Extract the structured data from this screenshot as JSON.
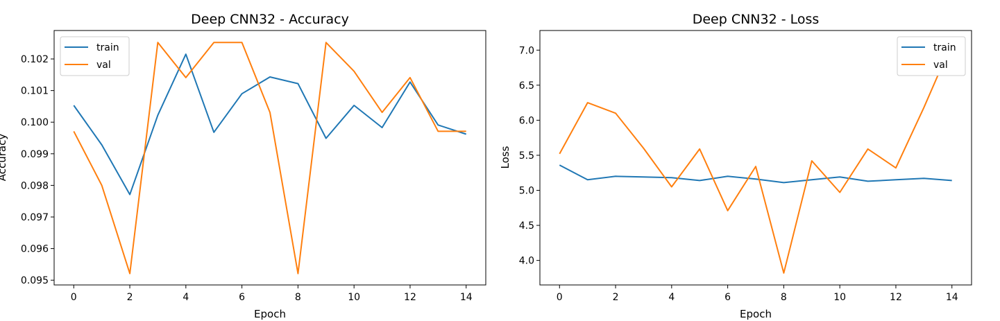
{
  "chart_data": [
    {
      "type": "line",
      "title": "Deep CNN32 - Accuracy",
      "xlabel": "Epoch",
      "ylabel": "Accuracy",
      "x": [
        0,
        1,
        2,
        3,
        4,
        5,
        6,
        7,
        8,
        9,
        10,
        11,
        12,
        13,
        14
      ],
      "series": [
        {
          "name": "train",
          "color": "#1f77b4",
          "values": [
            0.10053,
            0.09928,
            0.09771,
            0.10022,
            0.10215,
            0.09968,
            0.1009,
            0.10143,
            0.10122,
            0.09949,
            0.10053,
            0.09983,
            0.10127,
            0.09991,
            0.09962
          ]
        },
        {
          "name": "val",
          "color": "#ff7f0e",
          "values": [
            0.09971,
            0.098,
            0.09521,
            0.10252,
            0.10141,
            0.10252,
            0.10252,
            0.10031,
            0.09521,
            0.10252,
            0.10161,
            0.10031,
            0.10141,
            0.09971,
            0.09971
          ]
        }
      ],
      "xlim": [
        -0.7,
        14.7
      ],
      "ylim": [
        0.09485,
        0.1029
      ],
      "xticks": [
        0,
        2,
        4,
        6,
        8,
        10,
        12,
        14
      ],
      "yticks": [
        0.095,
        0.096,
        0.097,
        0.098,
        0.099,
        0.1,
        0.101,
        0.102
      ],
      "ytick_labels": [
        "0.095",
        "0.096",
        "0.097",
        "0.098",
        "0.099",
        "0.100",
        "0.101",
        "0.102"
      ],
      "legend": "top-left",
      "grid": false
    },
    {
      "type": "line",
      "title": "Deep CNN32 - Loss",
      "xlabel": "Epoch",
      "ylabel": "Loss",
      "x": [
        0,
        1,
        2,
        3,
        4,
        5,
        6,
        7,
        8,
        9,
        10,
        11,
        12,
        13,
        14
      ],
      "series": [
        {
          "name": "train",
          "color": "#1f77b4",
          "values": [
            5.36,
            5.15,
            5.2,
            5.19,
            5.18,
            5.14,
            5.2,
            5.16,
            5.11,
            5.15,
            5.19,
            5.13,
            5.15,
            5.17,
            5.14
          ]
        },
        {
          "name": "val",
          "color": "#ff7f0e",
          "values": [
            5.52,
            6.25,
            6.1,
            5.6,
            5.05,
            5.59,
            4.71,
            5.34,
            3.82,
            5.42,
            4.97,
            5.59,
            5.32,
            6.18,
            7.1
          ]
        }
      ],
      "xlim": [
        -0.7,
        14.7
      ],
      "ylim": [
        3.65,
        7.28
      ],
      "xticks": [
        0,
        2,
        4,
        6,
        8,
        10,
        12,
        14
      ],
      "yticks": [
        4.0,
        4.5,
        5.0,
        5.5,
        6.0,
        6.5,
        7.0
      ],
      "ytick_labels": [
        "4.0",
        "4.5",
        "5.0",
        "5.5",
        "6.0",
        "6.5",
        "7.0"
      ],
      "legend": "top-right",
      "grid": false
    }
  ]
}
